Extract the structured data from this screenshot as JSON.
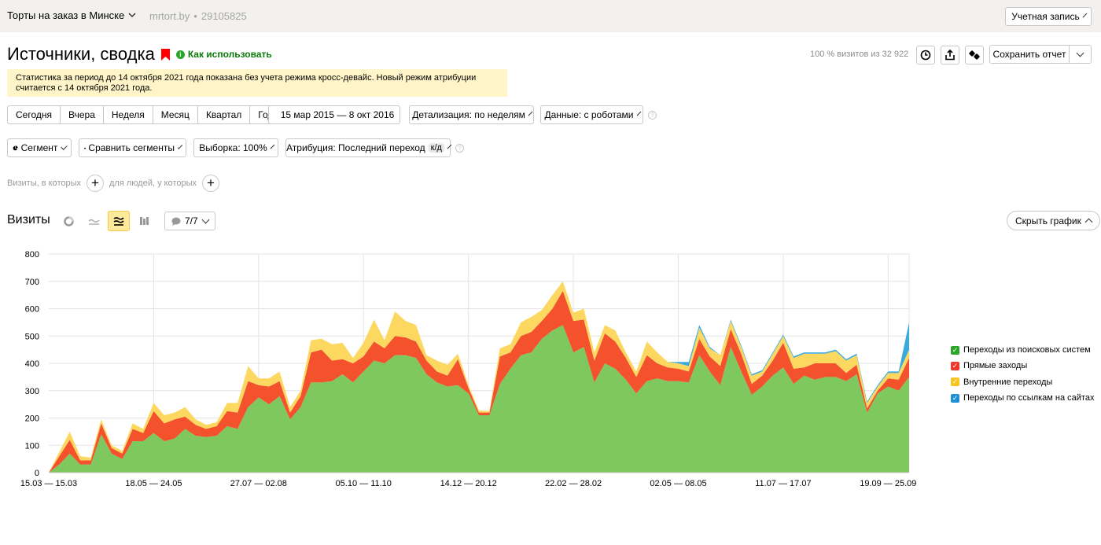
{
  "topbar": {
    "counter_name": "Торты на заказ в Минске",
    "site": "mrtort.by",
    "counter_id": "29105825",
    "account_label": "Учетная запись"
  },
  "header": {
    "title": "Источники, сводка",
    "howto_label": "Как использовать",
    "visits_share": "100 % визитов из 32 922",
    "save_label": "Сохранить отчет"
  },
  "notice": {
    "line1": "Статистика за период до 14 октября 2021 года показана без учета режима кросс-девайс. Новый режим атрибуции",
    "line2": "считается с 14 октября 2021 года."
  },
  "periods": [
    "Сегодня",
    "Вчера",
    "Неделя",
    "Месяц",
    "Квартал",
    "Год"
  ],
  "date_range": "15 мар 2015 — 8 окт 2016",
  "detail": "Детализация: по неделям",
  "data_mode": "Данные: с роботами",
  "segment_label": "Сегмент",
  "compare_label": "Сравнить сегменты",
  "sample_label": "Выборка: 100%",
  "attribution": {
    "label": "Атрибуция: Последний переход",
    "badge": "к/д"
  },
  "filters": {
    "visits_where": "Визиты, в которых",
    "people_where": "для людей, у которых"
  },
  "chart_header": {
    "title": "Визиты",
    "series_count": "7/7",
    "hide_label": "Скрыть график"
  },
  "colors": {
    "search": "#7ec85f",
    "direct": "#f4512d",
    "internal": "#fdd861",
    "referral": "#3aa9dc"
  },
  "legend": [
    {
      "label": "Переходы из поисковых систем",
      "color": "#2aa62a"
    },
    {
      "label": "Прямые заходы",
      "color": "#f1392b"
    },
    {
      "label": "Внутренние переходы",
      "color": "#f7c51c"
    },
    {
      "label": "Переходы по ссылкам на сайтах",
      "color": "#1e90d8"
    }
  ],
  "chart_data": {
    "type": "area",
    "stacked": true,
    "y_ticks": [
      "0",
      "100",
      "200",
      "300",
      "400",
      "500",
      "600",
      "700",
      "800"
    ],
    "ylim": [
      0,
      800
    ],
    "x_tick_labels": [
      "15.03 — 15.03",
      "18.05 — 24.05",
      "27.07 — 02.08",
      "05.10 — 11.10",
      "14.12 — 20.12",
      "22.02 — 28.02",
      "02.05 — 08.05",
      "11.07 — 17.07",
      "19.09 — 25.09"
    ],
    "x_tick_index": [
      0,
      10,
      20,
      30,
      40,
      50,
      60,
      70,
      80
    ],
    "series": [
      {
        "name": "Переходы из поисковых систем",
        "values": [
          0,
          30,
          70,
          30,
          30,
          140,
          70,
          50,
          115,
          115,
          145,
          115,
          125,
          160,
          135,
          130,
          135,
          170,
          160,
          240,
          275,
          250,
          280,
          195,
          240,
          330,
          330,
          335,
          360,
          330,
          370,
          410,
          400,
          430,
          430,
          420,
          360,
          330,
          315,
          320,
          290,
          210,
          210,
          325,
          380,
          430,
          440,
          490,
          520,
          540,
          440,
          460,
          330,
          400,
          380,
          340,
          290,
          335,
          345,
          335,
          335,
          330,
          430,
          370,
          320,
          460,
          370,
          285,
          315,
          355,
          385,
          325,
          355,
          340,
          350,
          350,
          335,
          360,
          220,
          290,
          315,
          300,
          350
        ],
        "color_key": "search"
      },
      {
        "name": "Прямые заходы",
        "values": [
          0,
          30,
          50,
          15,
          15,
          40,
          20,
          20,
          45,
          30,
          80,
          65,
          70,
          45,
          40,
          30,
          35,
          55,
          60,
          95,
          45,
          65,
          55,
          25,
          40,
          110,
          120,
          75,
          55,
          70,
          55,
          70,
          55,
          70,
          65,
          60,
          50,
          40,
          40,
          95,
          20,
          10,
          10,
          100,
          60,
          70,
          75,
          65,
          80,
          125,
          115,
          100,
          80,
          110,
          100,
          80,
          60,
          95,
          55,
          50,
          45,
          40,
          60,
          55,
          70,
          65,
          65,
          40,
          40,
          55,
          90,
          55,
          30,
          60,
          50,
          50,
          30,
          35,
          15,
          10,
          30,
          40,
          70
        ],
        "color_key": "direct"
      },
      {
        "name": "Внутренние переходы",
        "values": [
          0,
          15,
          30,
          15,
          10,
          15,
          10,
          10,
          20,
          15,
          30,
          30,
          25,
          35,
          20,
          15,
          15,
          30,
          35,
          55,
          25,
          30,
          35,
          20,
          20,
          45,
          40,
          60,
          60,
          20,
          50,
          80,
          30,
          90,
          60,
          60,
          20,
          40,
          40,
          20,
          10,
          8,
          5,
          30,
          30,
          50,
          55,
          40,
          50,
          35,
          30,
          40,
          30,
          30,
          40,
          20,
          20,
          50,
          40,
          20,
          20,
          20,
          40,
          30,
          40,
          30,
          25,
          30,
          15,
          25,
          25,
          40,
          50,
          35,
          35,
          45,
          45,
          35,
          20,
          15,
          20,
          25,
          30
        ],
        "color_key": "internal"
      },
      {
        "name": "Переходы по ссылкам на сайтах",
        "values": [
          0,
          0,
          0,
          0,
          0,
          0,
          0,
          0,
          0,
          0,
          0,
          0,
          0,
          0,
          0,
          0,
          0,
          0,
          0,
          0,
          0,
          0,
          0,
          0,
          0,
          0,
          0,
          0,
          0,
          0,
          0,
          0,
          0,
          0,
          0,
          0,
          0,
          0,
          0,
          0,
          0,
          0,
          0,
          0,
          0,
          0,
          0,
          0,
          0,
          0,
          0,
          0,
          0,
          0,
          0,
          0,
          0,
          0,
          0,
          0,
          5,
          15,
          10,
          5,
          0,
          5,
          5,
          5,
          5,
          5,
          5,
          5,
          5,
          5,
          5,
          5,
          5,
          5,
          5,
          5,
          5,
          5,
          100
        ],
        "color_key": "referral"
      }
    ]
  }
}
